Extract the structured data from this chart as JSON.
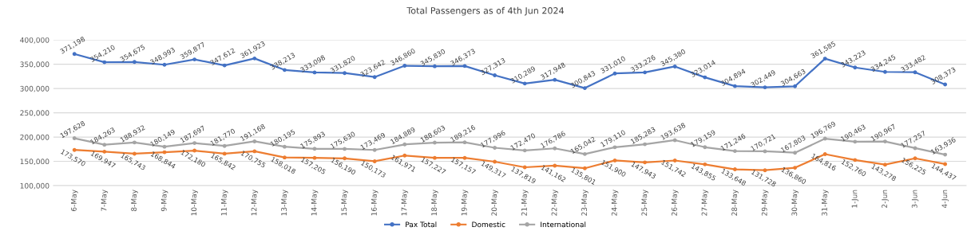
{
  "chart_data": {
    "type": "line",
    "title": "Total Passengers as of 4th Jun 2024",
    "categories": [
      "6-May",
      "7-May",
      "8-May",
      "9-May",
      "10-May",
      "11-May",
      "12-May",
      "13-May",
      "14-May",
      "15-May",
      "16-May",
      "17-May",
      "18-May",
      "19-May",
      "20-May",
      "21-May",
      "22-May",
      "23-May",
      "24-May",
      "25-May",
      "26-May",
      "27-May",
      "28-May",
      "29-May",
      "30-May",
      "31-May",
      "1-Jun",
      "2-Jun",
      "3-Jun",
      "4-Jun"
    ],
    "series": [
      {
        "name": "Pax Total",
        "color": "#4472c4",
        "values": [
          371198,
          354210,
          354675,
          348993,
          359877,
          347612,
          361923,
          338213,
          333098,
          331820,
          323642,
          346860,
          345830,
          346373,
          327313,
          310289,
          317948,
          300843,
          331010,
          333226,
          345380,
          323014,
          304894,
          302449,
          304663,
          361585,
          343223,
          334245,
          333482,
          308373
        ],
        "value_labels": [
          "371,198",
          "354,210",
          "354,675",
          "348,993",
          "359,877",
          "347,612",
          "361,923",
          "338,213",
          "333,098",
          "331,820",
          "323,642",
          "346,860",
          "345,830",
          "346,373",
          "327,313",
          "310,289",
          "317,948",
          "300,843",
          "331,010",
          "333,226",
          "345,380",
          "323,014",
          "304,894",
          "302,449",
          "304,663",
          "361,585",
          "343,223",
          "334,245",
          "333,482",
          "308,373"
        ]
      },
      {
        "name": "Domestic",
        "color": "#ed7d31",
        "values": [
          173570,
          169947,
          165743,
          168844,
          172180,
          165842,
          170755,
          158018,
          157205,
          156190,
          150173,
          161971,
          157227,
          157157,
          149317,
          137819,
          141162,
          135801,
          151900,
          147943,
          151742,
          143855,
          133648,
          131728,
          136860,
          164816,
          152760,
          143278,
          156225,
          144437
        ],
        "value_labels": [
          "173,570",
          "169,947",
          "165,743",
          "168,844",
          "172,180",
          "165,842",
          "170,755",
          "158,018",
          "157,205",
          "156,190",
          "150,173",
          "161,971",
          "157,227",
          "157,157",
          "149,317",
          "137,819",
          "141,162",
          "135,801",
          "151,900",
          "147,943",
          "151,742",
          "143,855",
          "133,648",
          "131,728",
          "136,860",
          "164,816",
          "152,760",
          "143,278",
          "156,225",
          "144,437"
        ]
      },
      {
        "name": "International",
        "color": "#a5a5a5",
        "values": [
          197628,
          184263,
          188932,
          180149,
          187697,
          181770,
          191168,
          180195,
          175893,
          175630,
          173469,
          184889,
          188603,
          189216,
          177996,
          172470,
          176786,
          165042,
          179110,
          185283,
          193638,
          179159,
          171246,
          170721,
          167803,
          196769,
          190463,
          190967,
          177257,
          163936
        ],
        "value_labels": [
          "197,628",
          "184,263",
          "188,932",
          "180,149",
          "187,697",
          "181,770",
          "191,168",
          "180,195",
          "175,893",
          "175,630",
          "173,469",
          "184,889",
          "188,603",
          "189,216",
          "177,996",
          "172,470",
          "176,786",
          "165,042",
          "179,110",
          "185,283",
          "193,638",
          "179,159",
          "171,246",
          "170,721",
          "167,803",
          "196,769",
          "190,463",
          "190,967",
          "177,257",
          "163,936"
        ]
      }
    ],
    "ylim": [
      100000,
      400000
    ],
    "yticks": [
      {
        "value": 100000,
        "label": "100,000"
      },
      {
        "value": 150000,
        "label": "150,000"
      },
      {
        "value": 200000,
        "label": "200,000"
      },
      {
        "value": 250000,
        "label": "250,000"
      },
      {
        "value": 300000,
        "label": "300,000"
      },
      {
        "value": 350000,
        "label": "350,000"
      },
      {
        "value": 400000,
        "label": "400,000"
      }
    ],
    "grid": "y",
    "legend": "bottom",
    "marker": "circle",
    "line_style": "solid"
  }
}
